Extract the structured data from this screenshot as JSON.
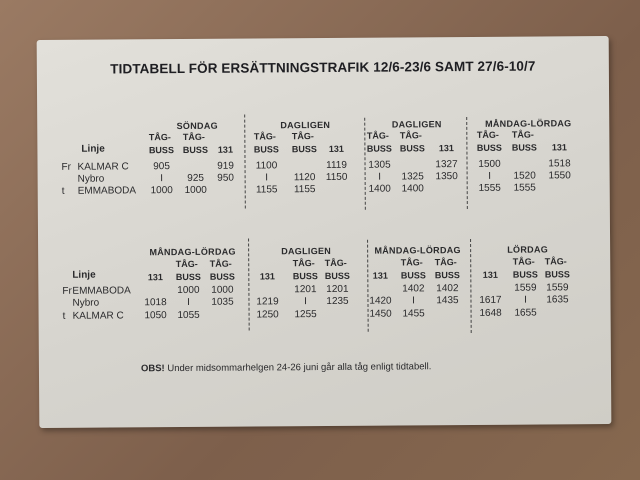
{
  "title": "TIDTABELL FÖR ERSÄTTNINGSTRAFIK 12/6-23/6 SAMT 27/6-10/7",
  "sections": [
    {
      "linje_label": "Linje",
      "stops": [
        {
          "prefix": "Fr",
          "name": "KALMAR C"
        },
        {
          "prefix": "",
          "name": "Nybro"
        },
        {
          "prefix": "t",
          "name": "EMMABODA"
        }
      ],
      "blocks": [
        {
          "header": "SÖNDAG",
          "columns": [
            "TÅG-\nBUSS",
            "TÅG-\nBUSS",
            "131"
          ],
          "rows": [
            [
              "905",
              "",
              "919"
            ],
            [
              "I",
              "925",
              "950"
            ],
            [
              "1000",
              "1000",
              ""
            ]
          ]
        },
        {
          "header": "DAGLIGEN",
          "columns": [
            "TÅG-\nBUSS",
            "TÅG-\nBUSS",
            "131"
          ],
          "rows": [
            [
              "1100",
              "",
              "1119"
            ],
            [
              "I",
              "1120",
              "1150"
            ],
            [
              "1155",
              "1155",
              ""
            ]
          ]
        },
        {
          "header": "DAGLIGEN",
          "columns": [
            "TÅG-\nBUSS",
            "TÅG-\nBUSS",
            "131"
          ],
          "rows": [
            [
              "1305",
              "",
              "1327"
            ],
            [
              "I",
              "1325",
              "1350"
            ],
            [
              "1400",
              "1400",
              ""
            ]
          ]
        },
        {
          "header": "MÅNDAG-LÖRDAG",
          "columns": [
            "TÅG-\nBUSS",
            "TÅG-\nBUSS",
            "131"
          ],
          "rows": [
            [
              "1500",
              "",
              "1518"
            ],
            [
              "I",
              "1520",
              "1550"
            ],
            [
              "1555",
              "1555",
              ""
            ]
          ]
        }
      ]
    },
    {
      "linje_label": "Linje",
      "stops": [
        {
          "prefix": "Fr",
          "name": "EMMABODA"
        },
        {
          "prefix": "",
          "name": "Nybro"
        },
        {
          "prefix": "t",
          "name": "KALMAR C"
        }
      ],
      "blocks": [
        {
          "header": "MÅNDAG-LÖRDAG",
          "columns": [
            "131",
            "TÅG-\nBUSS",
            "TÅG-\nBUSS"
          ],
          "rows": [
            [
              "",
              "1000",
              "1000"
            ],
            [
              "1018",
              "I",
              "1035"
            ],
            [
              "1050",
              "1055",
              ""
            ]
          ]
        },
        {
          "header": "DAGLIGEN",
          "columns": [
            "131",
            "TÅG-\nBUSS",
            "TÅG-\nBUSS"
          ],
          "rows": [
            [
              "",
              "1201",
              "1201"
            ],
            [
              "1219",
              "I",
              "1235"
            ],
            [
              "1250",
              "1255",
              ""
            ]
          ]
        },
        {
          "header": "MÅNDAG-LÖRDAG",
          "columns": [
            "131",
            "TÅG-\nBUSS",
            "TÅG-\nBUSS"
          ],
          "rows": [
            [
              "",
              "1402",
              "1402"
            ],
            [
              "1420",
              "I",
              "1435"
            ],
            [
              "1450",
              "1455",
              ""
            ]
          ]
        },
        {
          "header": "LÖRDAG",
          "columns": [
            "131",
            "TÅG-\nBUSS",
            "TÅG-\nBUSS"
          ],
          "rows": [
            [
              "",
              "1559",
              "1559"
            ],
            [
              "1617",
              "I",
              "1635"
            ],
            [
              "1648",
              "1655",
              ""
            ]
          ]
        }
      ]
    }
  ],
  "note": {
    "bold": "OBS!",
    "text": " Under midsommarhelgen 24-26 juni går alla tåg enligt tidtabell."
  }
}
